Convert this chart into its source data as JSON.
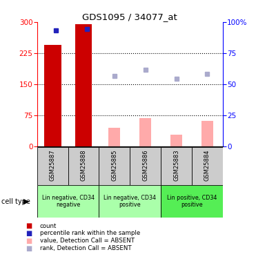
{
  "title": "GDS1095 / 34077_at",
  "samples": [
    "GSM25887",
    "GSM25888",
    "GSM25885",
    "GSM25886",
    "GSM25883",
    "GSM25884"
  ],
  "count_values": [
    245,
    295,
    0,
    0,
    0,
    0
  ],
  "rank_blue_present": [
    280,
    283,
    null,
    null,
    null,
    null
  ],
  "value_absent": [
    0,
    0,
    45,
    68,
    28,
    62
  ],
  "rank_absent": [
    null,
    null,
    170,
    185,
    163,
    175
  ],
  "ylim": [
    0,
    300
  ],
  "y2lim": [
    0,
    100
  ],
  "yticks": [
    0,
    75,
    150,
    225,
    300
  ],
  "y2ticks": [
    0,
    25,
    50,
    75,
    100
  ],
  "bar_color_present": "#cc0000",
  "bar_color_absent": "#ffaaaa",
  "dot_blue_present": "#2222bb",
  "dot_blue_absent": "#aaaacc",
  "cell_types": [
    {
      "label": "Lin negative, CD34\nnegative",
      "color": "#aaffaa",
      "start": 0,
      "end": 2
    },
    {
      "label": "Lin negative, CD34\npositive",
      "color": "#aaffaa",
      "start": 2,
      "end": 4
    },
    {
      "label": "Lin positive, CD34\npositive",
      "color": "#55ee55",
      "start": 4,
      "end": 6
    }
  ],
  "legend_colors": [
    "#cc0000",
    "#2222bb",
    "#ffaaaa",
    "#aaaacc"
  ],
  "legend_labels": [
    "count",
    "percentile rank within the sample",
    "value, Detection Call = ABSENT",
    "rank, Detection Call = ABSENT"
  ],
  "background_color": "#ffffff",
  "bar_width": 0.55
}
